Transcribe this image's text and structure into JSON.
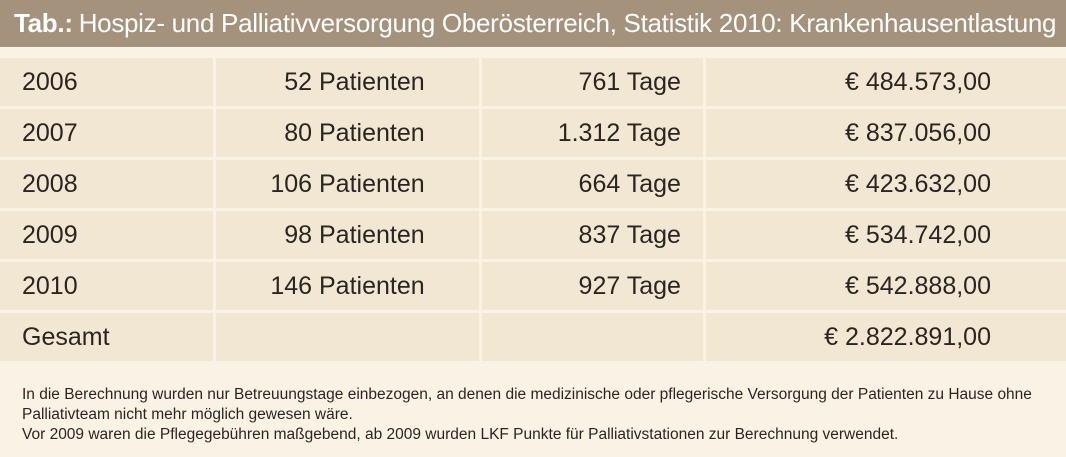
{
  "title": {
    "prefix": "Tab.:",
    "text": "Hospiz- und Palliativversorgung Oberösterreich, Statistik 2010: Krankenhausentlastung"
  },
  "table": {
    "rows": [
      {
        "year": "2006",
        "patients": "52 Patienten",
        "days": "761 Tage",
        "cost": "€ 484.573,00"
      },
      {
        "year": "2007",
        "patients": "80 Patienten",
        "days": "1.312 Tage",
        "cost": "€ 837.056,00"
      },
      {
        "year": "2008",
        "patients": "106 Patienten",
        "days": "664 Tage",
        "cost": "€ 423.632,00"
      },
      {
        "year": "2009",
        "patients": "98 Patienten",
        "days": "837 Tage",
        "cost": "€ 534.742,00"
      },
      {
        "year": "2010",
        "patients": "146 Patienten",
        "days": "927 Tage",
        "cost": "€ 542.888,00"
      },
      {
        "year": "Gesamt",
        "patients": "",
        "days": "",
        "cost": "€ 2.822.891,00"
      }
    ]
  },
  "footnote": {
    "line1": "In die Berechnung wurden nur Betreuungstage einbezogen, an denen die medizinische oder pflegerische Versorgung der Patienten zu Hause ohne Palliativteam nicht mehr möglich gewesen wäre.",
    "line2": "Vor 2009 waren die Pflegegebühren maßgebend, ab 2009 wurden LKF Punkte für Palliativstationen zur Berechnung verwendet."
  }
}
